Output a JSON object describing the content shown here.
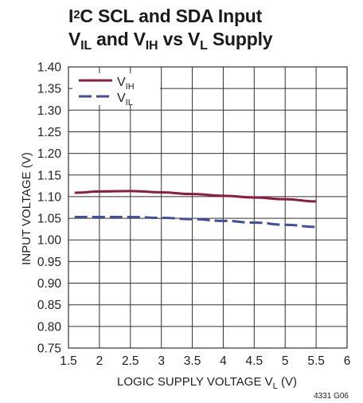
{
  "title": {
    "line1": {
      "a": "I",
      "sup": "2",
      "b": "C SCL and SDA Input"
    },
    "line2": {
      "a": "V",
      "sub1": "IL",
      "b": " and V",
      "sub2": "IH",
      "c": " vs V",
      "sub3": "L",
      "d": " Supply"
    }
  },
  "figure_id": "4331 G06",
  "colors": {
    "vih": "#8c1d40",
    "vil": "#3f4f9b",
    "grid": "#333333"
  },
  "chart_data": {
    "type": "line",
    "xlabel": {
      "main": "LOGIC SUPPLY VOLTAGE V",
      "sub": "L",
      "unit": " (V)"
    },
    "ylabel": "INPUT VOLTAGE (V)",
    "xlim": [
      1.5,
      6
    ],
    "ylim": [
      0.75,
      1.4
    ],
    "xticks": [
      "1.5",
      "2",
      "2.5",
      "3",
      "3.5",
      "4",
      "4.5",
      "5",
      "5.5",
      "6"
    ],
    "yticks": [
      "0.75",
      "0.80",
      "0.85",
      "0.90",
      "0.95",
      "1.00",
      "1.05",
      "1.10",
      "1.15",
      "1.20",
      "1.25",
      "1.30",
      "1.35",
      "1.40"
    ],
    "grid": true,
    "legend_position": "top-left",
    "series": [
      {
        "name_main": "V",
        "name_sub": "IH",
        "style": "solid",
        "x": [
          1.6,
          2.0,
          2.5,
          3.0,
          3.5,
          4.0,
          4.5,
          5.0,
          5.5
        ],
        "y": [
          1.109,
          1.112,
          1.113,
          1.11,
          1.106,
          1.102,
          1.098,
          1.094,
          1.089
        ]
      },
      {
        "name_main": "V",
        "name_sub": "IL",
        "style": "dashed",
        "x": [
          1.6,
          2.0,
          2.5,
          3.0,
          3.5,
          4.0,
          4.5,
          5.0,
          5.5
        ],
        "y": [
          1.053,
          1.053,
          1.053,
          1.051,
          1.048,
          1.044,
          1.04,
          1.035,
          1.03
        ]
      }
    ]
  }
}
